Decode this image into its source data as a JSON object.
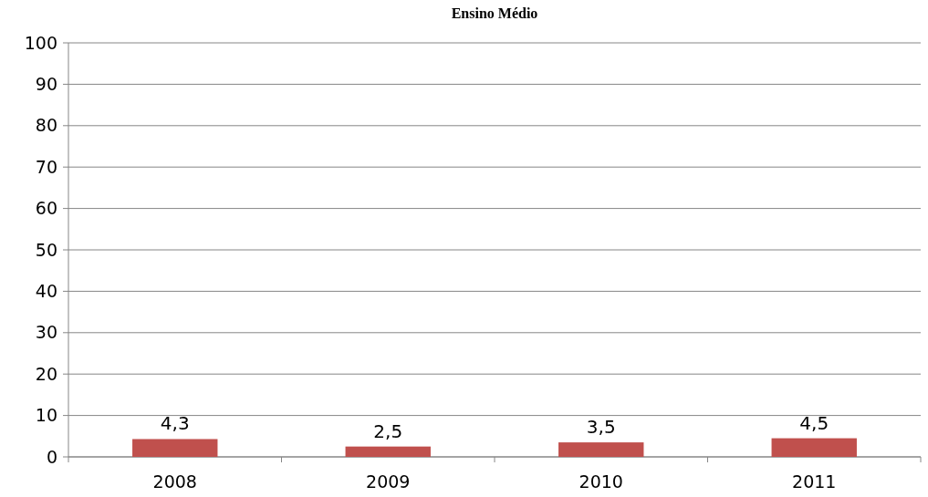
{
  "chart_data": {
    "type": "bar",
    "title": "Ensino Médio",
    "categories": [
      "2008",
      "2009",
      "2010",
      "2011"
    ],
    "series": [
      {
        "color": "#c0504d",
        "values": [
          4.3,
          2.5,
          3.5,
          4.5
        ],
        "value_labels": [
          "4,3",
          "2,5",
          "3,5",
          "4,5"
        ]
      }
    ],
    "ylim": [
      0,
      100
    ],
    "yticks": [
      0,
      10,
      20,
      30,
      40,
      50,
      60,
      70,
      80,
      90,
      100
    ],
    "grid": "y"
  }
}
